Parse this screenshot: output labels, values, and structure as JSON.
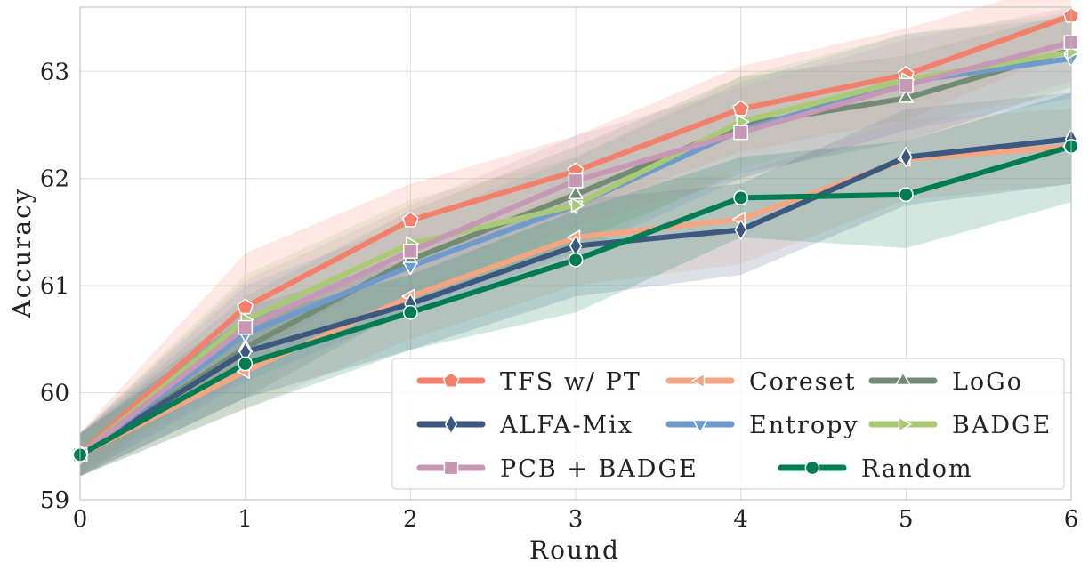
{
  "chart_data": {
    "type": "line",
    "xlabel": "Round",
    "ylabel": "Accuracy",
    "xlim": [
      0,
      6
    ],
    "ylim": [
      59,
      63.6
    ],
    "x": [
      0,
      1,
      2,
      3,
      4,
      5,
      6
    ],
    "xticks": [
      "0",
      "1",
      "2",
      "3",
      "4",
      "5",
      "6"
    ],
    "yticks": [
      "59",
      "60",
      "61",
      "62",
      "63"
    ],
    "grid": true,
    "legend_position": "bottom-right",
    "series": [
      {
        "name": "TFS w/ PT",
        "color": "#f4806c",
        "marker": "pentagon",
        "values": [
          59.43,
          60.8,
          61.61,
          62.07,
          62.65,
          62.97,
          63.52
        ],
        "upper": [
          59.63,
          61.3,
          61.95,
          62.4,
          63.05,
          63.4,
          63.85
        ],
        "lower": [
          59.23,
          60.3,
          61.25,
          61.7,
          62.25,
          62.55,
          63.2
        ]
      },
      {
        "name": "Coreset",
        "color": "#f4a683",
        "marker": "triangle-left",
        "values": [
          59.42,
          60.2,
          60.9,
          61.45,
          61.62,
          62.18,
          62.3
        ],
        "upper": [
          59.62,
          60.6,
          61.3,
          61.9,
          62.05,
          62.55,
          62.65
        ],
        "lower": [
          59.22,
          59.85,
          60.5,
          61.0,
          61.2,
          61.8,
          61.95
        ]
      },
      {
        "name": "LoGo",
        "color": "#728b74",
        "marker": "triangle-up",
        "values": [
          59.42,
          60.42,
          61.24,
          61.85,
          62.5,
          62.75,
          63.2
        ],
        "upper": [
          59.62,
          60.9,
          61.7,
          62.3,
          62.95,
          63.15,
          63.55
        ],
        "lower": [
          59.22,
          59.95,
          60.8,
          61.4,
          62.05,
          62.35,
          62.85
        ]
      },
      {
        "name": "ALFA-Mix",
        "color": "#3c587e",
        "marker": "diamond",
        "values": [
          59.42,
          60.38,
          60.83,
          61.37,
          61.52,
          62.2,
          62.37
        ],
        "upper": [
          59.62,
          60.8,
          61.25,
          61.8,
          61.95,
          62.65,
          62.8
        ],
        "lower": [
          59.22,
          59.95,
          60.4,
          60.9,
          61.1,
          61.75,
          61.95
        ]
      },
      {
        "name": "Entropy",
        "color": "#6e9bcb",
        "marker": "triangle-down",
        "values": [
          59.42,
          60.55,
          61.18,
          61.75,
          62.45,
          62.9,
          63.12
        ],
        "upper": [
          59.62,
          61.0,
          61.6,
          62.2,
          62.9,
          63.35,
          63.5
        ],
        "lower": [
          59.22,
          60.1,
          60.75,
          61.3,
          62.0,
          62.45,
          62.75
        ]
      },
      {
        "name": "BADGE",
        "color": "#a9ca74",
        "marker": "triangle-right",
        "values": [
          59.42,
          60.68,
          61.39,
          61.75,
          62.53,
          62.92,
          63.18
        ],
        "upper": [
          59.62,
          61.1,
          61.8,
          62.2,
          62.95,
          63.35,
          63.55
        ],
        "lower": [
          59.22,
          60.25,
          60.95,
          61.3,
          62.1,
          62.5,
          62.8
        ]
      },
      {
        "name": "PCB + BADGE",
        "color": "#c797b6",
        "marker": "square",
        "values": [
          59.42,
          60.61,
          61.32,
          61.98,
          62.43,
          62.87,
          63.27
        ],
        "upper": [
          59.62,
          61.05,
          61.75,
          62.4,
          62.85,
          63.3,
          63.6
        ],
        "lower": [
          59.22,
          60.15,
          60.9,
          61.55,
          62.0,
          62.45,
          62.9
        ]
      },
      {
        "name": "Random",
        "color": "#007c52",
        "marker": "circle",
        "values": [
          59.42,
          60.27,
          60.75,
          61.24,
          61.82,
          61.85,
          62.3
        ],
        "upper": [
          59.62,
          60.7,
          61.1,
          61.7,
          62.2,
          62.35,
          62.8
        ],
        "lower": [
          59.22,
          59.85,
          60.4,
          60.75,
          61.45,
          61.35,
          61.78
        ]
      }
    ],
    "legend_layout": [
      [
        "TFS w/ PT",
        "Coreset",
        "LoGo"
      ],
      [
        "ALFA-Mix",
        "Entropy",
        "BADGE"
      ],
      [
        "PCB + BADGE",
        "Random"
      ]
    ]
  }
}
